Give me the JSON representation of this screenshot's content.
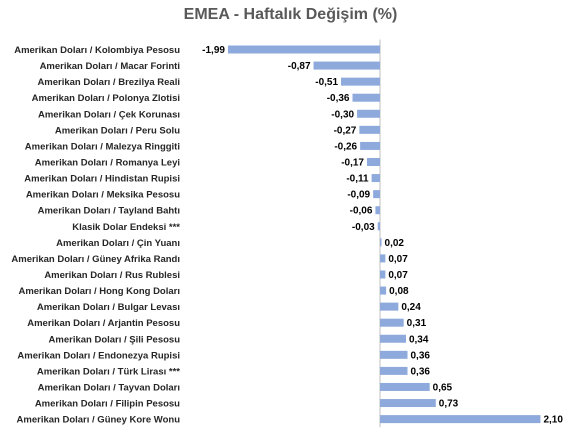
{
  "chart_data": {
    "type": "bar",
    "orientation": "horizontal",
    "title": "EMEA - Haftalık Değişim (%)",
    "xlabel": "",
    "ylabel": "",
    "xlim": [
      -2.0,
      2.2
    ],
    "grid": false,
    "legend": "none",
    "bar_color": "#8EA9DB",
    "axis_color": "#bfbfbf",
    "categories": [
      "Amerikan Doları / Kolombiya Pesosu",
      "Amerikan Doları / Macar Forinti",
      "Amerikan Doları / Brezilya Reali",
      "Amerikan Doları / Polonya Zlotisi",
      "Amerikan Doları / Çek Korunası",
      "Amerikan Doları / Peru Solu",
      "Amerikan Doları / Malezya Ringgiti",
      "Amerikan Doları / Romanya Leyi",
      "Amerikan Doları / Hindistan Rupisi",
      "Amerikan Doları / Meksika Pesosu",
      "Amerikan Doları / Tayland Bahtı",
      "Klasik Dolar Endeksi ***",
      "Amerikan Doları / Çin Yuanı",
      "Amerikan Doları / Güney Afrika Randı",
      "Amerikan Doları / Rus Rublesi",
      "Amerikan Doları / Hong Kong Doları",
      "Amerikan Doları / Bulgar Levası",
      "Amerikan Doları / Arjantin Pesosu",
      "Amerikan Doları / Şili Pesosu",
      "Amerikan Doları / Endonezya Rupisi",
      "Amerikan Doları / Türk Lirası ***",
      "Amerikan Doları / Tayvan Doları",
      "Amerikan Doları / Filipin Pesosu",
      "Amerikan Doları / Güney Kore Wonu"
    ],
    "values": [
      -1.99,
      -0.87,
      -0.51,
      -0.36,
      -0.3,
      -0.27,
      -0.26,
      -0.17,
      -0.11,
      -0.09,
      -0.06,
      -0.03,
      0.02,
      0.07,
      0.07,
      0.08,
      0.24,
      0.31,
      0.34,
      0.36,
      0.36,
      0.65,
      0.73,
      2.1
    ],
    "value_labels": [
      "-1,99",
      "-0,87",
      "-0,51",
      "-0,36",
      "-0,30",
      "-0,27",
      "-0,26",
      "-0,17",
      "-0,11",
      "-0,09",
      "-0,06",
      "-0,03",
      "0,02",
      "0,07",
      "0,07",
      "0,08",
      "0,24",
      "0,31",
      "0,34",
      "0,36",
      "0,36",
      "0,65",
      "0,73",
      "2,10"
    ]
  }
}
